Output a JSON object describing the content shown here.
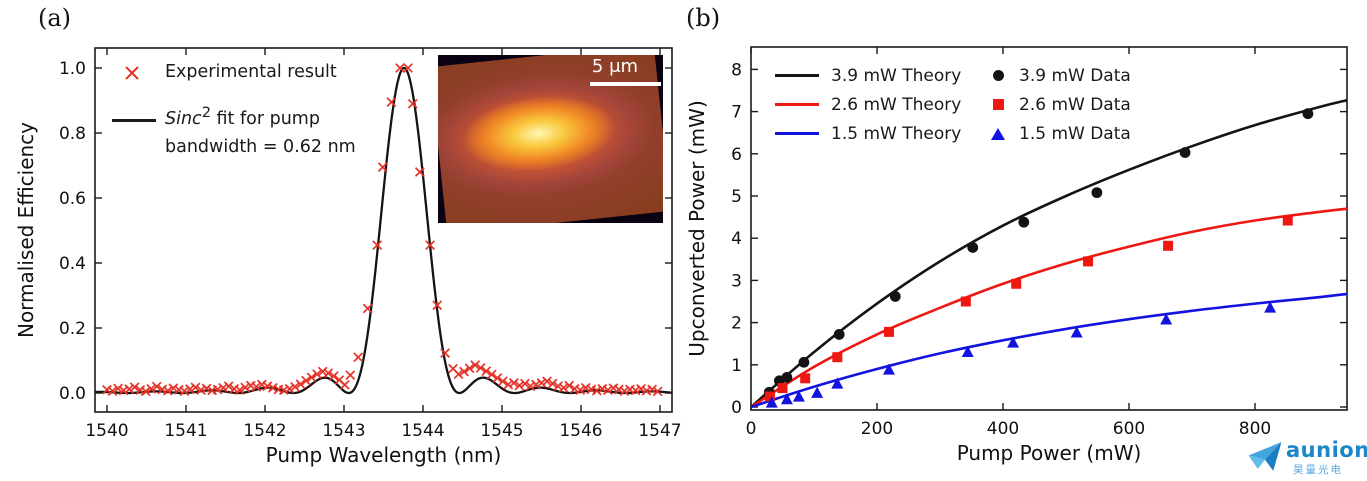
{
  "figure": {
    "panel_a_label": "(a)",
    "panel_b_label": "(b)"
  },
  "watermark": {
    "brand": "aunion",
    "subtext": "昊量光电",
    "brand_color": "#1b86c8",
    "icon_colors": [
      "#42a5dd",
      "#1a7fc0",
      "#63bde8"
    ]
  },
  "chart_data": [
    {
      "id": "panel_a",
      "type": "scatter",
      "title": "",
      "xlabel": "Pump Wavelength (nm)",
      "ylabel": "Normalised Efficiency",
      "xlim": [
        1539.85,
        1547.15
      ],
      "ylim": [
        -0.06,
        1.06
      ],
      "xticks": [
        1540,
        1541,
        1542,
        1543,
        1544,
        1545,
        1546,
        1547
      ],
      "yticks": [
        0.0,
        0.2,
        0.4,
        0.6,
        0.8,
        1.0
      ],
      "grid": false,
      "legend_position": "upper left, frameless",
      "legend": {
        "experimental_label": "Experimental result",
        "experimental_marker": "x",
        "experimental_color": "#e43025",
        "fit_italic": "Sinc",
        "fit_sup": "2",
        "fit_rest": " fit for pump",
        "fit_line2": "bandwidth = 0.62 nm",
        "fit_color": "#1a1a1a"
      },
      "fit_curve": {
        "model": "sinc_squared",
        "center_nm": 1543.76,
        "first_zero_offset_nm": 0.7,
        "fwhm_nm": 0.62
      },
      "inset": {
        "description": "upconverted beam profile image, magma colormap",
        "scalebar_label": "5 μm"
      },
      "experimental_points": [
        [
          1540.0,
          0.01
        ],
        [
          1540.07,
          0.006
        ],
        [
          1540.14,
          0.014
        ],
        [
          1540.21,
          0.008
        ],
        [
          1540.28,
          0.012
        ],
        [
          1540.35,
          0.018
        ],
        [
          1540.42,
          0.009
        ],
        [
          1540.49,
          0.005
        ],
        [
          1540.56,
          0.013
        ],
        [
          1540.63,
          0.02
        ],
        [
          1540.7,
          0.011
        ],
        [
          1540.77,
          0.007
        ],
        [
          1540.84,
          0.015
        ],
        [
          1540.91,
          0.01
        ],
        [
          1540.98,
          0.006
        ],
        [
          1541.05,
          0.012
        ],
        [
          1541.12,
          0.017
        ],
        [
          1541.19,
          0.009
        ],
        [
          1541.26,
          0.014
        ],
        [
          1541.33,
          0.008
        ],
        [
          1541.4,
          0.011
        ],
        [
          1541.47,
          0.016
        ],
        [
          1541.54,
          0.021
        ],
        [
          1541.61,
          0.013
        ],
        [
          1541.68,
          0.009
        ],
        [
          1541.75,
          0.017
        ],
        [
          1541.82,
          0.023
        ],
        [
          1541.89,
          0.019
        ],
        [
          1541.96,
          0.026
        ],
        [
          1542.03,
          0.021
        ],
        [
          1542.1,
          0.016
        ],
        [
          1542.17,
          0.011
        ],
        [
          1542.24,
          0.009
        ],
        [
          1542.31,
          0.013
        ],
        [
          1542.38,
          0.019
        ],
        [
          1542.45,
          0.027
        ],
        [
          1542.52,
          0.038
        ],
        [
          1542.59,
          0.048
        ],
        [
          1542.66,
          0.058
        ],
        [
          1542.73,
          0.066
        ],
        [
          1542.8,
          0.061
        ],
        [
          1542.87,
          0.052
        ],
        [
          1542.94,
          0.04
        ],
        [
          1543.01,
          0.025
        ],
        [
          1543.08,
          0.055
        ],
        [
          1543.18,
          0.11
        ],
        [
          1543.3,
          0.26
        ],
        [
          1543.42,
          0.455
        ],
        [
          1543.49,
          0.695
        ],
        [
          1543.6,
          0.895
        ],
        [
          1543.71,
          1.0
        ],
        [
          1543.81,
          1.0
        ],
        [
          1543.87,
          0.89
        ],
        [
          1543.96,
          0.68
        ],
        [
          1544.09,
          0.455
        ],
        [
          1544.18,
          0.27
        ],
        [
          1544.28,
          0.123
        ],
        [
          1544.38,
          0.075
        ],
        [
          1544.45,
          0.058
        ],
        [
          1544.52,
          0.066
        ],
        [
          1544.59,
          0.076
        ],
        [
          1544.66,
          0.086
        ],
        [
          1544.73,
          0.077
        ],
        [
          1544.8,
          0.067
        ],
        [
          1544.87,
          0.057
        ],
        [
          1544.94,
          0.046
        ],
        [
          1545.01,
          0.036
        ],
        [
          1545.08,
          0.026
        ],
        [
          1545.15,
          0.031
        ],
        [
          1545.22,
          0.023
        ],
        [
          1545.29,
          0.029
        ],
        [
          1545.36,
          0.021
        ],
        [
          1545.43,
          0.026
        ],
        [
          1545.5,
          0.031
        ],
        [
          1545.57,
          0.036
        ],
        [
          1545.64,
          0.029
        ],
        [
          1545.71,
          0.021
        ],
        [
          1545.78,
          0.016
        ],
        [
          1545.85,
          0.023
        ],
        [
          1545.92,
          0.013
        ],
        [
          1545.99,
          0.009
        ],
        [
          1546.06,
          0.016
        ],
        [
          1546.13,
          0.011
        ],
        [
          1546.2,
          0.007
        ],
        [
          1546.27,
          0.013
        ],
        [
          1546.34,
          0.009
        ],
        [
          1546.41,
          0.015
        ],
        [
          1546.48,
          0.011
        ],
        [
          1546.55,
          0.006
        ],
        [
          1546.62,
          0.011
        ],
        [
          1546.69,
          0.008
        ],
        [
          1546.76,
          0.013
        ],
        [
          1546.83,
          0.007
        ],
        [
          1546.9,
          0.011
        ],
        [
          1546.97,
          0.005
        ]
      ]
    },
    {
      "id": "panel_b",
      "type": "line+scatter",
      "title": "",
      "xlabel": "Pump Power (mW)",
      "ylabel": "Upconverted Power (mW)",
      "xlim": [
        0,
        946
      ],
      "ylim": [
        -0.07,
        8.53
      ],
      "xticks": [
        0,
        200,
        400,
        600,
        800
      ],
      "yticks": [
        0,
        1,
        2,
        3,
        4,
        5,
        6,
        7,
        8
      ],
      "grid": false,
      "legend_position": "upper left, two columns, frameless",
      "legend": {
        "theory": [
          {
            "label": "3.9 mW Theory",
            "color": "#141414"
          },
          {
            "label": "2.6 mW Theory",
            "color": "#ee1711"
          },
          {
            "label": "1.5 mW Theory",
            "color": "#1313e0"
          }
        ],
        "data": [
          {
            "label": "3.9 mW Data",
            "color": "#141414",
            "marker": "circle"
          },
          {
            "label": "2.6 mW Data",
            "color": "#ee1711",
            "marker": "square"
          },
          {
            "label": "1.5 mW Data",
            "color": "#1313e0",
            "marker": "triangle"
          }
        ]
      },
      "series": [
        {
          "name": "3.9 mW Theory",
          "kind": "line",
          "color": "#141414",
          "x": [
            0,
            100,
            200,
            300,
            400,
            500,
            600,
            700,
            800,
            900,
            946
          ],
          "y": [
            0,
            1.3,
            2.45,
            3.45,
            4.3,
            5.0,
            5.62,
            6.18,
            6.68,
            7.1,
            7.27
          ]
        },
        {
          "name": "2.6 mW Theory",
          "kind": "line",
          "color": "#ee1711",
          "x": [
            0,
            100,
            200,
            300,
            400,
            500,
            600,
            700,
            800,
            900,
            946
          ],
          "y": [
            0,
            0.95,
            1.72,
            2.35,
            2.92,
            3.4,
            3.8,
            4.15,
            4.42,
            4.62,
            4.7
          ]
        },
        {
          "name": "1.5 mW Theory",
          "kind": "line",
          "color": "#1313e0",
          "x": [
            0,
            100,
            200,
            300,
            400,
            500,
            600,
            700,
            800,
            900,
            946
          ],
          "y": [
            0,
            0.48,
            0.9,
            1.27,
            1.58,
            1.85,
            2.08,
            2.28,
            2.45,
            2.6,
            2.68
          ]
        },
        {
          "name": "3.9 mW Data",
          "kind": "scatter",
          "marker": "circle",
          "color": "#141414",
          "x": [
            29,
            45,
            57,
            84,
            140,
            229,
            352,
            433,
            549,
            689,
            884
          ],
          "y": [
            0.35,
            0.62,
            0.7,
            1.06,
            1.72,
            2.62,
            3.78,
            4.38,
            5.08,
            6.03,
            6.95
          ]
        },
        {
          "name": "2.6 mW Data",
          "kind": "scatter",
          "marker": "square",
          "color": "#ee1711",
          "x": [
            30,
            50,
            86,
            137,
            219,
            341,
            421,
            535,
            662,
            852
          ],
          "y": [
            0.25,
            0.45,
            0.68,
            1.18,
            1.78,
            2.5,
            2.92,
            3.45,
            3.82,
            4.42
          ]
        },
        {
          "name": "1.5 mW Data",
          "kind": "scatter",
          "marker": "triangle",
          "color": "#1313e0",
          "x": [
            33,
            57,
            76,
            105,
            137,
            219,
            344,
            416,
            517,
            659,
            824
          ],
          "y": [
            0.1,
            0.18,
            0.24,
            0.33,
            0.55,
            0.88,
            1.3,
            1.52,
            1.76,
            2.07,
            2.35
          ]
        }
      ]
    }
  ]
}
